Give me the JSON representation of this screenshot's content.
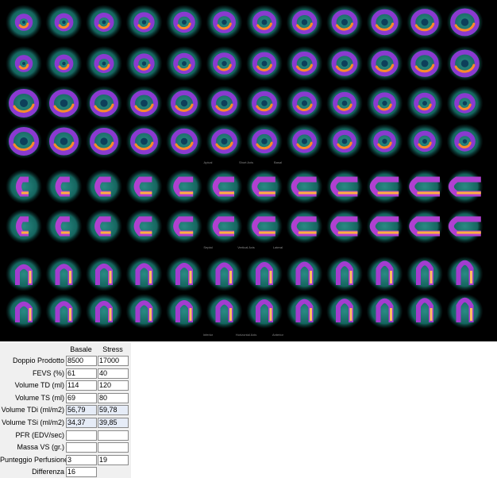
{
  "image_labels": [
    {
      "left": "Apical",
      "center": "Short Axis",
      "right": "Basal"
    },
    {
      "left": "Septal",
      "center": "Vertical Axis",
      "right": "Lateral"
    },
    {
      "left": "Inferior",
      "center": "Horizontal Axis",
      "right": "Anterior"
    }
  ],
  "table": {
    "columns": [
      "Basale",
      "Stress"
    ],
    "rows": [
      {
        "label": "Doppio Prodotto",
        "basale": "8500",
        "stress": "17000"
      },
      {
        "label": "FEVS (%)",
        "basale": "61",
        "stress": "40"
      },
      {
        "label": "Volume TD (ml)",
        "basale": "114",
        "stress": "120"
      },
      {
        "label": "Volume TS (ml)",
        "basale": "69",
        "stress": "80"
      },
      {
        "label": "Volume TDi (ml/m2)",
        "basale": "56,79",
        "stress": "59,78"
      },
      {
        "label": "Volume TSi (ml/m2)",
        "basale": "34,37",
        "stress": "39,85"
      },
      {
        "label": "PFR (EDV/sec)"
      },
      {
        "label": "Massa VS (gr.)"
      },
      {
        "label": "Punteggio Perfusione",
        "basale": "3",
        "stress": "19"
      },
      {
        "label": "Differenza",
        "basale": "16"
      }
    ]
  }
}
